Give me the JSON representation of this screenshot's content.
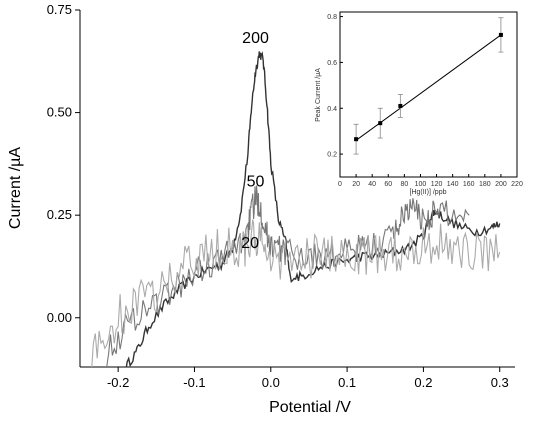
{
  "chart_data": [
    {
      "type": "line",
      "xlabel": "Potential /V",
      "ylabel": "Current /µA",
      "xlim": [
        -0.25,
        0.32
      ],
      "ylim": [
        -0.12,
        0.75
      ],
      "xticks": [
        -0.2,
        -0.1,
        0.0,
        0.1,
        0.2,
        0.3
      ],
      "xtick_labels": [
        "-0.2",
        "-0.1",
        "0.0",
        "0.1",
        "0.2",
        "0.3"
      ],
      "yticks": [
        0.0,
        0.25,
        0.5,
        0.75
      ],
      "ytick_labels": [
        "0.00",
        "0.25",
        "0.50",
        "0.75"
      ],
      "annotations": [
        {
          "text": "200",
          "x": -0.02,
          "y": 0.67
        },
        {
          "text": "50",
          "x": -0.02,
          "y": 0.32
        },
        {
          "text": "20",
          "x": -0.027,
          "y": 0.17
        }
      ],
      "series": [
        {
          "color": "#333333",
          "noise": 0.004,
          "x": [
            -0.19,
            -0.175,
            -0.16,
            -0.14,
            -0.12,
            -0.1,
            -0.08,
            -0.065,
            -0.05,
            -0.04,
            -0.03,
            -0.025,
            -0.02,
            -0.015,
            -0.01,
            -0.005,
            0.0,
            0.01,
            0.02,
            0.025,
            0.04,
            0.06,
            0.08,
            0.1,
            0.12,
            0.14,
            0.16,
            0.18,
            0.2,
            0.21,
            0.215,
            0.23,
            0.25,
            0.27,
            0.29,
            0.3
          ],
          "y": [
            -0.12,
            -0.08,
            -0.02,
            0.03,
            0.07,
            0.1,
            0.12,
            0.13,
            0.17,
            0.25,
            0.4,
            0.52,
            0.6,
            0.645,
            0.63,
            0.52,
            0.38,
            0.24,
            0.18,
            0.1,
            0.1,
            0.12,
            0.13,
            0.14,
            0.15,
            0.15,
            0.16,
            0.17,
            0.2,
            0.25,
            0.26,
            0.24,
            0.22,
            0.21,
            0.22,
            0.23
          ]
        },
        {
          "color": "#777777",
          "noise": 0.012,
          "x": [
            -0.22,
            -0.2,
            -0.18,
            -0.16,
            -0.14,
            -0.12,
            -0.1,
            -0.08,
            -0.06,
            -0.04,
            -0.03,
            -0.025,
            -0.02,
            -0.015,
            -0.01,
            -0.005,
            0.0,
            0.01,
            0.02,
            0.04,
            0.06,
            0.08,
            0.1,
            0.12,
            0.14,
            0.16,
            0.17,
            0.18,
            0.19,
            0.2,
            0.21,
            0.22,
            0.24,
            0.26
          ],
          "y": [
            -0.1,
            -0.05,
            0.0,
            0.03,
            0.05,
            0.08,
            0.11,
            0.13,
            0.15,
            0.18,
            0.22,
            0.26,
            0.29,
            0.28,
            0.24,
            0.2,
            0.18,
            0.17,
            0.16,
            0.15,
            0.15,
            0.15,
            0.16,
            0.17,
            0.18,
            0.2,
            0.24,
            0.27,
            0.26,
            0.24,
            0.25,
            0.26,
            0.25,
            0.25
          ]
        },
        {
          "color": "#aaaaaa",
          "noise": 0.018,
          "x": [
            -0.24,
            -0.22,
            -0.2,
            -0.18,
            -0.16,
            -0.14,
            -0.12,
            -0.1,
            -0.08,
            -0.06,
            -0.04,
            -0.03,
            -0.02,
            -0.01,
            0.0,
            0.02,
            0.04,
            0.06,
            0.08,
            0.1,
            0.12,
            0.14,
            0.16,
            0.18,
            0.2,
            0.22,
            0.24,
            0.26,
            0.28,
            0.3
          ],
          "y": [
            -0.11,
            -0.06,
            0.0,
            0.03,
            0.05,
            0.08,
            0.11,
            0.14,
            0.16,
            0.17,
            0.17,
            0.18,
            0.19,
            0.17,
            0.15,
            0.14,
            0.14,
            0.15,
            0.15,
            0.15,
            0.15,
            0.15,
            0.16,
            0.17,
            0.18,
            0.18,
            0.17,
            0.16,
            0.16,
            0.16
          ]
        }
      ]
    },
    {
      "type": "scatter",
      "xlabel": "[Hg(II)] /ppb",
      "ylabel": "Peak Current /µA",
      "xlim": [
        0,
        220
      ],
      "ylim": [
        0.1,
        0.82
      ],
      "xticks": [
        0,
        20,
        40,
        60,
        80,
        100,
        120,
        140,
        160,
        180,
        200,
        220
      ],
      "xtick_labels": [
        "0",
        "20",
        "40",
        "60",
        "80",
        "100",
        "120",
        "140",
        "160",
        "180",
        "200",
        "220"
      ],
      "yticks": [
        0.2,
        0.4,
        0.6,
        0.8
      ],
      "ytick_labels": [
        "0.2",
        "0.4",
        "0.6",
        "0.8"
      ],
      "points": [
        {
          "x": 20,
          "y": 0.265,
          "err": 0.065
        },
        {
          "x": 50,
          "y": 0.335,
          "err": 0.065
        },
        {
          "x": 75,
          "y": 0.41,
          "err": 0.05
        },
        {
          "x": 200,
          "y": 0.72,
          "err": 0.075
        }
      ],
      "fit_line": {
        "x": [
          20,
          200
        ],
        "y": [
          0.26,
          0.72
        ]
      }
    }
  ]
}
